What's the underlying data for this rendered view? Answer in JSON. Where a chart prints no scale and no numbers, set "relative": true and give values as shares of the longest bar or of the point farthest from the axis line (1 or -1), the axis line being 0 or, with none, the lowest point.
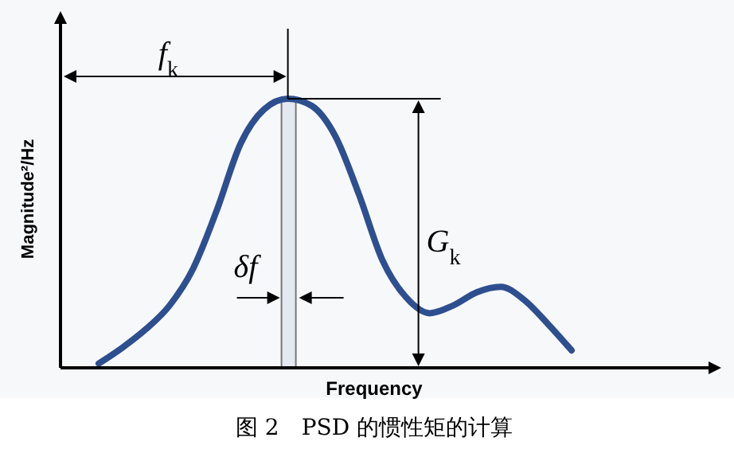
{
  "chart_data": {
    "type": "line",
    "relative": true,
    "title": "图 2　PSD 的惯性矩的计算",
    "xlabel": "Frequency",
    "ylabel": "Magnitude²/Hz",
    "categories": [
      null,
      null,
      null,
      null,
      null,
      null,
      null,
      null,
      null,
      null,
      null,
      null,
      null,
      null,
      null,
      null,
      null,
      null,
      null,
      null,
      null
    ],
    "series": [
      {
        "color": "#2e4f8f",
        "values": [
          0.016,
          0.075,
          0.144,
          0.232,
          0.37,
          0.587,
          0.833,
          0.961,
          1,
          0.974,
          0.862,
          0.646,
          0.4,
          0.262,
          0.203,
          0.232,
          0.281,
          0.301,
          0.252,
          0.163,
          0.065
        ]
      }
    ],
    "annotations": [
      "f$_{k}$",
      "G$_{k}$",
      "δf"
    ]
  }
}
